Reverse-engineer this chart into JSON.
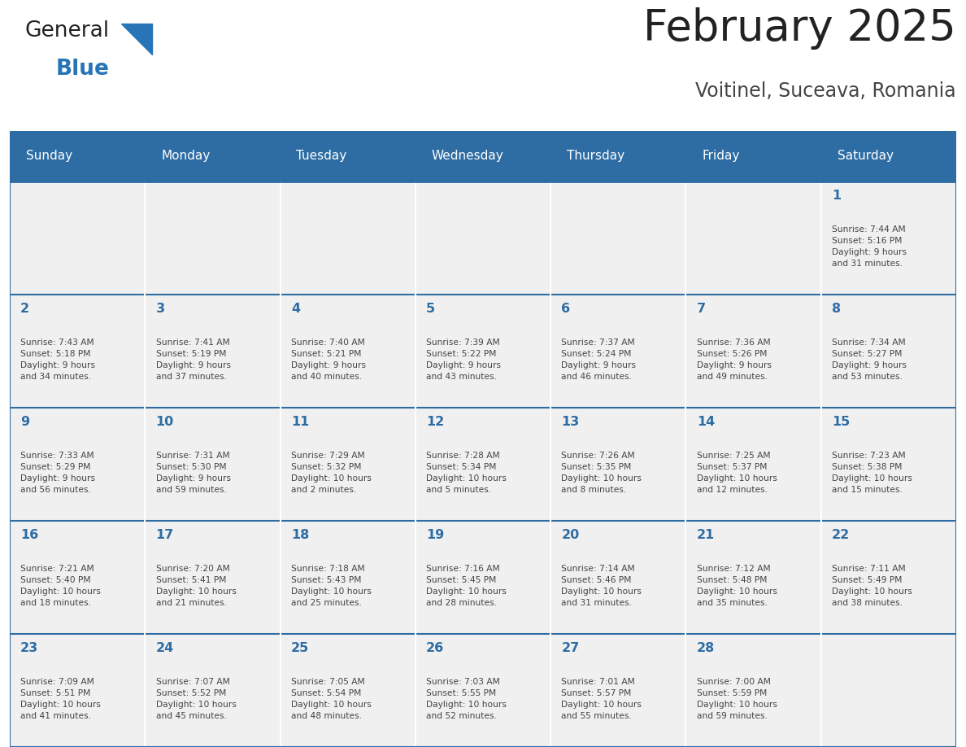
{
  "title": "February 2025",
  "subtitle": "Voitinel, Suceava, Romania",
  "days_of_week": [
    "Sunday",
    "Monday",
    "Tuesday",
    "Wednesday",
    "Thursday",
    "Friday",
    "Saturday"
  ],
  "header_bg": "#2E6DA4",
  "header_text": "#FFFFFF",
  "cell_bg": "#F0F0F0",
  "day_number_color": "#2E6DA4",
  "info_text_color": "#444444",
  "border_color": "#2E6DA4",
  "grid_color": "#FFFFFF",
  "title_color": "#222222",
  "subtitle_color": "#444444",
  "logo_general_color": "#222222",
  "logo_blue_color": "#2775B6",
  "weeks": [
    [
      {
        "day": null,
        "info": ""
      },
      {
        "day": null,
        "info": ""
      },
      {
        "day": null,
        "info": ""
      },
      {
        "day": null,
        "info": ""
      },
      {
        "day": null,
        "info": ""
      },
      {
        "day": null,
        "info": ""
      },
      {
        "day": 1,
        "info": "Sunrise: 7:44 AM\nSunset: 5:16 PM\nDaylight: 9 hours\nand 31 minutes."
      }
    ],
    [
      {
        "day": 2,
        "info": "Sunrise: 7:43 AM\nSunset: 5:18 PM\nDaylight: 9 hours\nand 34 minutes."
      },
      {
        "day": 3,
        "info": "Sunrise: 7:41 AM\nSunset: 5:19 PM\nDaylight: 9 hours\nand 37 minutes."
      },
      {
        "day": 4,
        "info": "Sunrise: 7:40 AM\nSunset: 5:21 PM\nDaylight: 9 hours\nand 40 minutes."
      },
      {
        "day": 5,
        "info": "Sunrise: 7:39 AM\nSunset: 5:22 PM\nDaylight: 9 hours\nand 43 minutes."
      },
      {
        "day": 6,
        "info": "Sunrise: 7:37 AM\nSunset: 5:24 PM\nDaylight: 9 hours\nand 46 minutes."
      },
      {
        "day": 7,
        "info": "Sunrise: 7:36 AM\nSunset: 5:26 PM\nDaylight: 9 hours\nand 49 minutes."
      },
      {
        "day": 8,
        "info": "Sunrise: 7:34 AM\nSunset: 5:27 PM\nDaylight: 9 hours\nand 53 minutes."
      }
    ],
    [
      {
        "day": 9,
        "info": "Sunrise: 7:33 AM\nSunset: 5:29 PM\nDaylight: 9 hours\nand 56 minutes."
      },
      {
        "day": 10,
        "info": "Sunrise: 7:31 AM\nSunset: 5:30 PM\nDaylight: 9 hours\nand 59 minutes."
      },
      {
        "day": 11,
        "info": "Sunrise: 7:29 AM\nSunset: 5:32 PM\nDaylight: 10 hours\nand 2 minutes."
      },
      {
        "day": 12,
        "info": "Sunrise: 7:28 AM\nSunset: 5:34 PM\nDaylight: 10 hours\nand 5 minutes."
      },
      {
        "day": 13,
        "info": "Sunrise: 7:26 AM\nSunset: 5:35 PM\nDaylight: 10 hours\nand 8 minutes."
      },
      {
        "day": 14,
        "info": "Sunrise: 7:25 AM\nSunset: 5:37 PM\nDaylight: 10 hours\nand 12 minutes."
      },
      {
        "day": 15,
        "info": "Sunrise: 7:23 AM\nSunset: 5:38 PM\nDaylight: 10 hours\nand 15 minutes."
      }
    ],
    [
      {
        "day": 16,
        "info": "Sunrise: 7:21 AM\nSunset: 5:40 PM\nDaylight: 10 hours\nand 18 minutes."
      },
      {
        "day": 17,
        "info": "Sunrise: 7:20 AM\nSunset: 5:41 PM\nDaylight: 10 hours\nand 21 minutes."
      },
      {
        "day": 18,
        "info": "Sunrise: 7:18 AM\nSunset: 5:43 PM\nDaylight: 10 hours\nand 25 minutes."
      },
      {
        "day": 19,
        "info": "Sunrise: 7:16 AM\nSunset: 5:45 PM\nDaylight: 10 hours\nand 28 minutes."
      },
      {
        "day": 20,
        "info": "Sunrise: 7:14 AM\nSunset: 5:46 PM\nDaylight: 10 hours\nand 31 minutes."
      },
      {
        "day": 21,
        "info": "Sunrise: 7:12 AM\nSunset: 5:48 PM\nDaylight: 10 hours\nand 35 minutes."
      },
      {
        "day": 22,
        "info": "Sunrise: 7:11 AM\nSunset: 5:49 PM\nDaylight: 10 hours\nand 38 minutes."
      }
    ],
    [
      {
        "day": 23,
        "info": "Sunrise: 7:09 AM\nSunset: 5:51 PM\nDaylight: 10 hours\nand 41 minutes."
      },
      {
        "day": 24,
        "info": "Sunrise: 7:07 AM\nSunset: 5:52 PM\nDaylight: 10 hours\nand 45 minutes."
      },
      {
        "day": 25,
        "info": "Sunrise: 7:05 AM\nSunset: 5:54 PM\nDaylight: 10 hours\nand 48 minutes."
      },
      {
        "day": 26,
        "info": "Sunrise: 7:03 AM\nSunset: 5:55 PM\nDaylight: 10 hours\nand 52 minutes."
      },
      {
        "day": 27,
        "info": "Sunrise: 7:01 AM\nSunset: 5:57 PM\nDaylight: 10 hours\nand 55 minutes."
      },
      {
        "day": 28,
        "info": "Sunrise: 7:00 AM\nSunset: 5:59 PM\nDaylight: 10 hours\nand 59 minutes."
      },
      {
        "day": null,
        "info": ""
      }
    ]
  ]
}
